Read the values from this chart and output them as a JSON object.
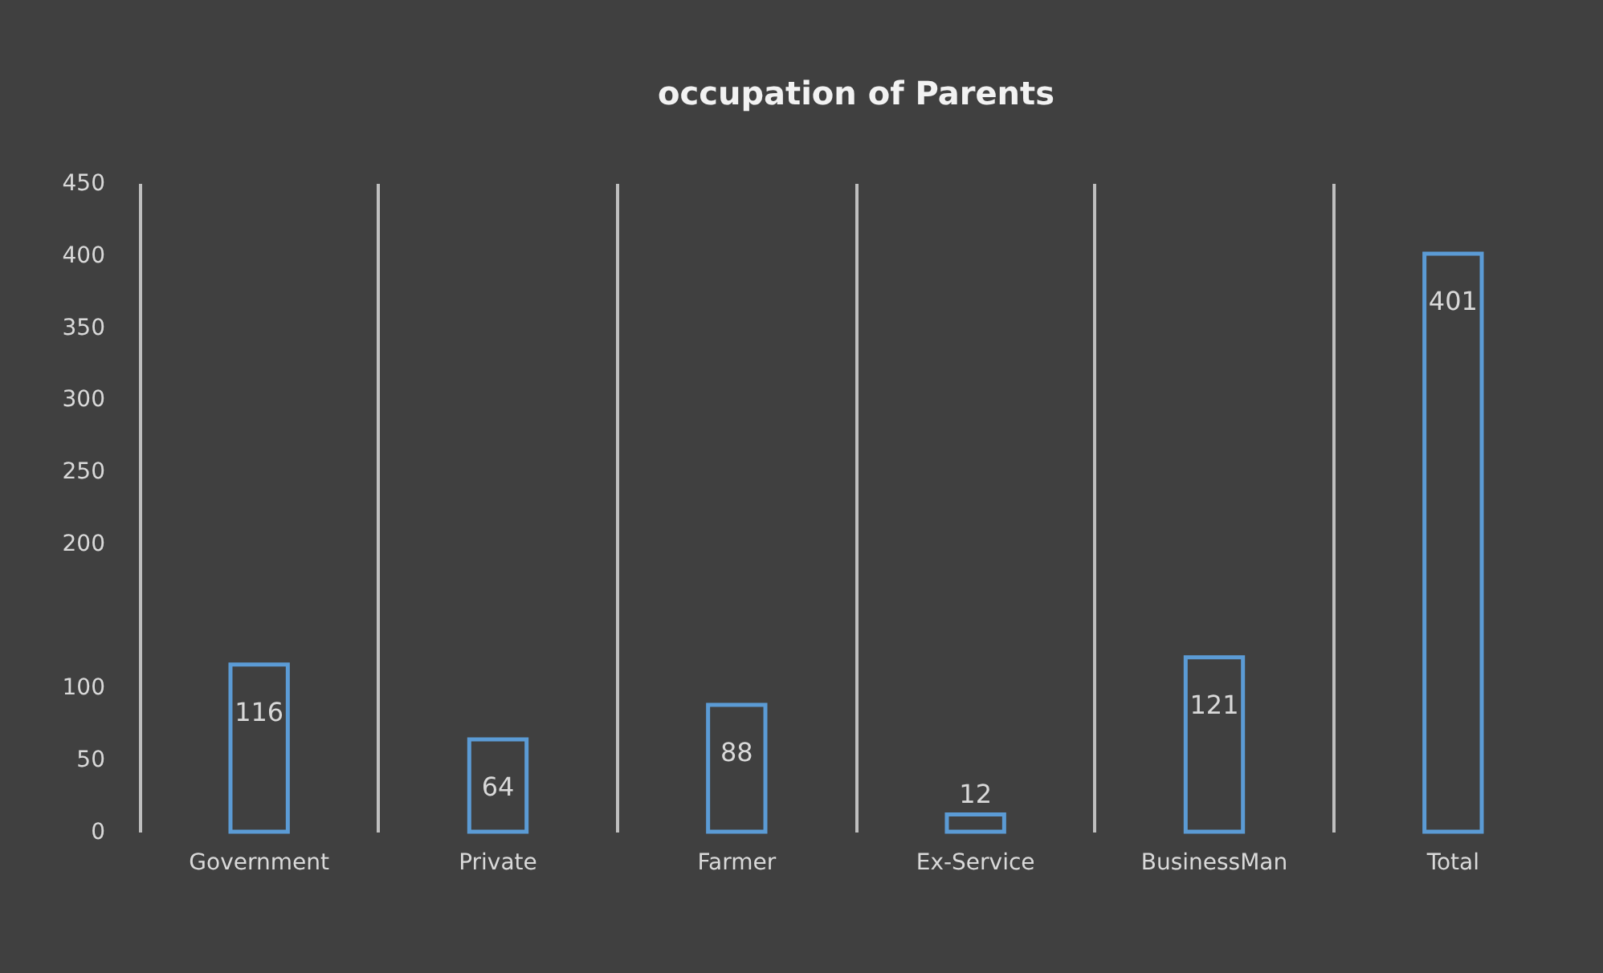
{
  "chart_data": {
    "type": "bar",
    "title": "occupation of Parents",
    "categories": [
      "Government",
      "Private",
      "Farmer",
      "Ex-Service",
      "BusinessMan",
      "Total"
    ],
    "values": [
      116,
      64,
      88,
      12,
      121,
      401
    ],
    "color": "#5b9bd5",
    "ylim": [
      0,
      450
    ],
    "yticks": [
      0,
      50,
      100,
      200,
      250,
      300,
      350,
      400,
      450
    ],
    "grid": "x",
    "data_labels": true
  }
}
